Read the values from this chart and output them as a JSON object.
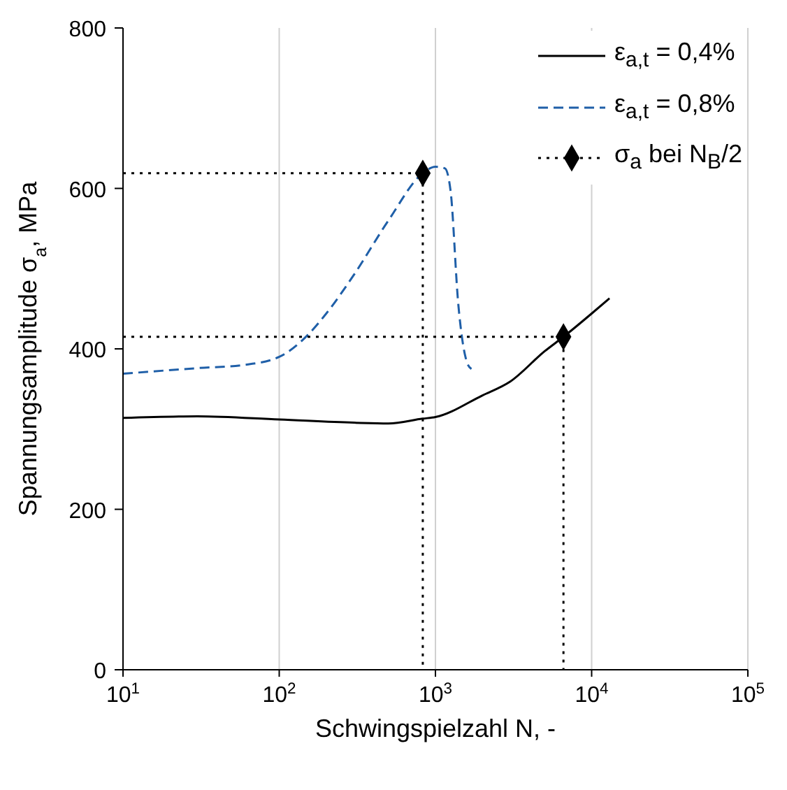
{
  "chart_data": {
    "type": "line",
    "xlabel": "Schwingspielzahl N, -",
    "ylabel": "Spannungsamplitude σ$_{a}$, MPa",
    "log": "x",
    "grid": "x",
    "legend": "top right",
    "xlim": [
      10,
      100000
    ],
    "xticks": [
      {
        "value": 10,
        "label": "10$^{1}$"
      },
      {
        "value": 100,
        "label": "10$^{2}$"
      },
      {
        "value": 1000,
        "label": "10$^{3}$"
      },
      {
        "value": 10000,
        "label": "10$^{4}$"
      },
      {
        "value": 100000,
        "label": "10$^{5}$"
      }
    ],
    "ylim": [
      0,
      800
    ],
    "yticks": [
      0,
      200,
      400,
      600,
      800
    ],
    "series": [
      {
        "name": "ε$_{a,t}$ = 0,4%",
        "color": "#000000",
        "line_style": "solid",
        "x": [
          10,
          30,
          100,
          300,
          500,
          830,
          1000,
          2000,
          3000,
          5000,
          6600,
          10000,
          13000
        ],
        "values": [
          314,
          316,
          312,
          308,
          307,
          313,
          315,
          342,
          359,
          397,
          415,
          444,
          463
        ]
      },
      {
        "name": "ε$_{a,t}$ = 0,8%",
        "color": "#1f5fa8",
        "line_style": "dashed",
        "x": [
          10,
          30,
          60,
          100,
          150,
          200,
          300,
          500,
          830,
          1000,
          1150,
          1250,
          1400,
          1600,
          1700
        ],
        "values": [
          369,
          376,
          380,
          390,
          416,
          444,
          492,
          560,
          619,
          627,
          625,
          597,
          456,
          382,
          375
        ]
      },
      {
        "color": "#000000",
        "line_style": "dotted",
        "x": [
          10,
          830,
          830
        ],
        "values": [
          619,
          619,
          0
        ]
      },
      {
        "color": "#000000",
        "line_style": "dotted",
        "x": [
          10,
          6600,
          6600
        ],
        "values": [
          415,
          415,
          0
        ]
      },
      {
        "name": "σ$_{a}$ bei N$_{B}$/2",
        "color": "#000000",
        "type": "scatter",
        "marker": "diamond",
        "line_style": "dotted",
        "x": [
          830,
          6600
        ],
        "values": [
          619,
          415
        ]
      }
    ]
  }
}
